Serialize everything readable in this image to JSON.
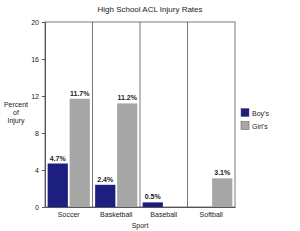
{
  "chart_data": {
    "type": "bar",
    "title": "High School ACL Injury Rates",
    "x_label": "Sport",
    "y_label": "Percent of Injury",
    "categories": [
      "Soccer",
      "Basketball",
      "Baseball",
      "Softball"
    ],
    "series": [
      {
        "name": "Boy's",
        "color": "#1c1f7d",
        "values": [
          4.7,
          2.4,
          0.5,
          null
        ],
        "value_labels": [
          "4.7%",
          "2.4%",
          "0.5%",
          null
        ]
      },
      {
        "name": "Girl's",
        "color": "#a6a6a6",
        "values": [
          11.7,
          11.2,
          null,
          3.1
        ],
        "value_labels": [
          "11.7%",
          "11.2%",
          null,
          "3.1%"
        ]
      }
    ],
    "ylim": [
      0,
      20
    ],
    "yticks": [
      0,
      4,
      8,
      12,
      16,
      20
    ],
    "data_labels": true,
    "legend": "right"
  }
}
